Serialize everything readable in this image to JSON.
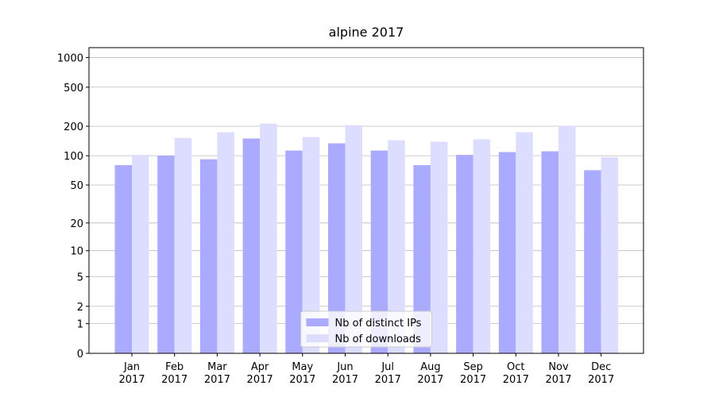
{
  "chart_data": {
    "type": "bar",
    "title": "alpine 2017",
    "categories": [
      "Jan\n2017",
      "Feb\n2017",
      "Mar\n2017",
      "Apr\n2017",
      "May\n2017",
      "Jun\n2017",
      "Jul\n2017",
      "Aug\n2017",
      "Sep\n2017",
      "Oct\n2017",
      "Nov\n2017",
      "Dec\n2017"
    ],
    "series": [
      {
        "name": "Nb of distinct IPs",
        "color": "#aaaaff",
        "values": [
          80,
          100,
          92,
          150,
          113,
          134,
          113,
          80,
          102,
          109,
          111,
          71
        ]
      },
      {
        "name": "Nb of downloads",
        "color": "#ddddff",
        "values": [
          102,
          152,
          174,
          213,
          155,
          205,
          144,
          139,
          147,
          174,
          201,
          97
        ]
      }
    ],
    "yscale": "log1p",
    "ylim": [
      0,
      1260
    ],
    "yticks": [
      0,
      1,
      2,
      5,
      10,
      20,
      50,
      100,
      200,
      500,
      1000
    ],
    "grid": true,
    "legend": "lower center"
  }
}
